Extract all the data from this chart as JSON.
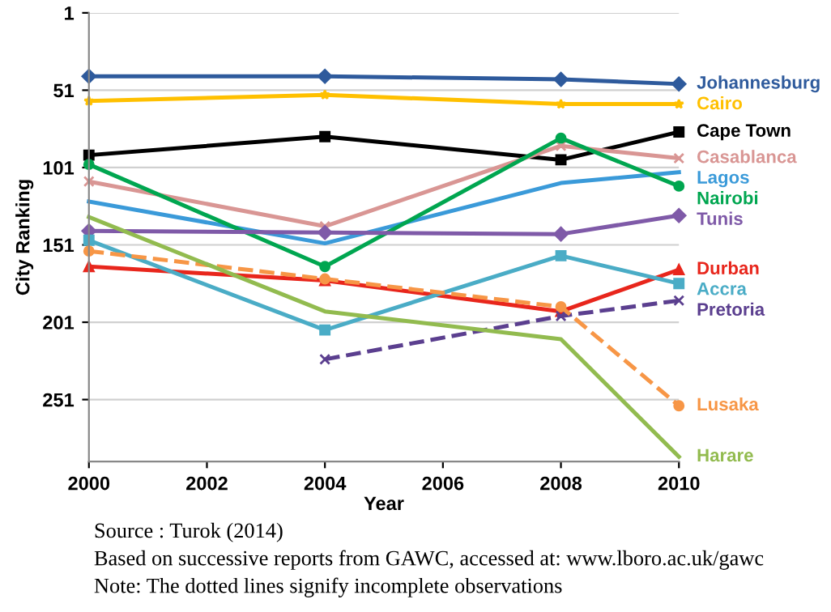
{
  "chart_data": {
    "type": "line",
    "xlabel": "Year",
    "ylabel": "City Ranking",
    "x": [
      2000,
      2004,
      2008,
      2010
    ],
    "xlim": [
      2000,
      2010
    ],
    "xticks": [
      2000,
      2002,
      2004,
      2006,
      2008,
      2010
    ],
    "ylim": [
      291,
      1
    ],
    "yticks": [
      1,
      51,
      101,
      151,
      201,
      251
    ],
    "grid": "y",
    "legend": false,
    "series": [
      {
        "name": "Johannesburg",
        "color": "#2e5a9c",
        "marker": "diamond",
        "values": [
          42,
          42,
          44,
          47
        ]
      },
      {
        "name": "Cairo",
        "color": "#ffc000",
        "marker": "star",
        "values": [
          58,
          54,
          60,
          60
        ]
      },
      {
        "name": "Cape Town",
        "color": "#000000",
        "marker": "square",
        "values": [
          93,
          81,
          96,
          78
        ]
      },
      {
        "name": "Casablanca",
        "color": "#d99694",
        "marker": "cross",
        "values": [
          110,
          139,
          87,
          95
        ]
      },
      {
        "name": "Lagos",
        "color": "#3a9ad9",
        "marker": "none",
        "values": [
          123,
          150,
          111,
          104
        ]
      },
      {
        "name": "Nairobi",
        "color": "#00a650",
        "marker": "circle",
        "values": [
          99,
          165,
          82,
          113
        ]
      },
      {
        "name": "Tunis",
        "color": "#7f5aa8",
        "marker": "diamond",
        "values": [
          142,
          143,
          144,
          132
        ]
      },
      {
        "name": "Durban",
        "color": "#e8261c",
        "marker": "triangle",
        "values": [
          165,
          174,
          194,
          167
        ]
      },
      {
        "name": "Accra",
        "color": "#4aacc6",
        "marker": "square",
        "values": [
          148,
          206,
          158,
          176
        ]
      },
      {
        "name": "Pretoria",
        "color": "#5b3f8f",
        "marker": "cross",
        "line_style": "dashed",
        "values": [
          null,
          225,
          197,
          187
        ]
      },
      {
        "name": "Lusaka",
        "color": "#f79646",
        "marker": "circle",
        "line_style": "dashed",
        "values": [
          155,
          173,
          191,
          255
        ]
      },
      {
        "name": "Harare",
        "color": "#92bb4f",
        "marker": "none",
        "values": [
          133,
          194,
          212,
          288
        ]
      }
    ],
    "annotations": [
      "Source : Turok (2014)",
      "Based on successive reports from GAWC, accessed at: www.lboro.ac.uk/gawc",
      "Note: The dotted lines signify incomplete observations"
    ]
  }
}
